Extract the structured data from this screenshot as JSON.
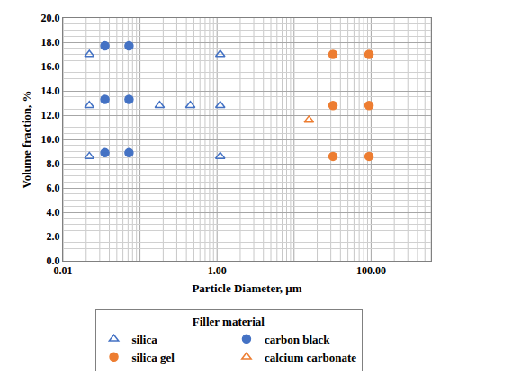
{
  "chart_data": {
    "type": "scatter",
    "x_label": "Particle Diameter, µm",
    "y_label": "Volume fraction, %",
    "legend_title": "Filler material",
    "log": "x",
    "grid": true,
    "legend": "bottom",
    "xlim": [
      0.01,
      600
    ],
    "xticks": [
      {
        "value": 0.01,
        "label": "0.01"
      },
      {
        "value": 1,
        "label": "1.00"
      },
      {
        "value": 100,
        "label": "100.00"
      }
    ],
    "ylim": [
      0,
      20
    ],
    "yticks": [
      {
        "value": 0,
        "label": "0.0"
      },
      {
        "value": 2,
        "label": "2.0"
      },
      {
        "value": 4,
        "label": "4.0"
      },
      {
        "value": 6,
        "label": "6.0"
      },
      {
        "value": 8,
        "label": "8.0"
      },
      {
        "value": 10,
        "label": "10.0"
      },
      {
        "value": 12,
        "label": "12.0"
      },
      {
        "value": 14,
        "label": "14.0"
      },
      {
        "value": 16,
        "label": "16.0"
      },
      {
        "value": 18,
        "label": "18.0"
      },
      {
        "value": 20,
        "label": "20.0"
      }
    ],
    "series": [
      {
        "name": "silica",
        "color": "#4472c4",
        "marker": "triangle-open",
        "x": [
          0.022,
          0.022,
          0.022,
          0.18,
          0.45,
          1.1,
          1.1,
          1.1
        ],
        "values": [
          17.0,
          12.8,
          8.6,
          12.8,
          12.8,
          17.0,
          12.8,
          8.6
        ]
      },
      {
        "name": "carbon black",
        "color": "#4472c4",
        "marker": "circle",
        "x": [
          0.035,
          0.035,
          0.035,
          0.072,
          0.072,
          0.072
        ],
        "values": [
          17.7,
          13.3,
          8.9,
          17.7,
          13.3,
          8.9
        ]
      },
      {
        "name": "silica gel",
        "color": "#ed7d31",
        "marker": "circle",
        "x": [
          32,
          32,
          32,
          94,
          94,
          94
        ],
        "values": [
          17.0,
          12.8,
          8.6,
          17.0,
          12.8,
          8.6
        ]
      },
      {
        "name": "calcium carbonate",
        "color": "#ed7d31",
        "marker": "triangle-open",
        "x": [
          15.6
        ],
        "values": [
          11.6
        ]
      }
    ]
  }
}
